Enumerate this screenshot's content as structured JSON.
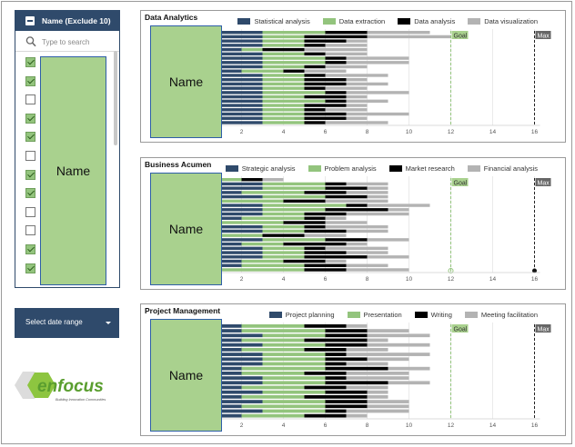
{
  "filter": {
    "title": "Name (Exclude 10)",
    "search_placeholder": "Type to search",
    "checkboxes": [
      true,
      true,
      false,
      true,
      true,
      false,
      true,
      true,
      false,
      false,
      true,
      true
    ],
    "name_label": "Name"
  },
  "date_button": {
    "label": "Select date range"
  },
  "logo": {
    "brand": "enfocus",
    "tagline": "Building Innovation Communities"
  },
  "colors": {
    "navy": "#2f4a6b",
    "green": "#93c47d",
    "black": "#000000",
    "gray": "#b3b3b3",
    "name_fill": "#a9d18e"
  },
  "charts": [
    {
      "title": "Data Analytics",
      "name_label": "Name",
      "legend": [
        "Statistical analysis",
        "Data extraction",
        "Data analysis",
        "Data visualization"
      ],
      "goal_label": "Goal",
      "max_label": "Max",
      "rows": [
        [
          3,
          3,
          2,
          3
        ],
        [
          3,
          2,
          3,
          4
        ],
        [
          3,
          2,
          2,
          1
        ],
        [
          3,
          2,
          1,
          2
        ],
        [
          2,
          1,
          2,
          3
        ],
        [
          3,
          2,
          1,
          2
        ],
        [
          3,
          3,
          1,
          3
        ],
        [
          3,
          3,
          1,
          3
        ],
        [
          3,
          2,
          1,
          2
        ],
        [
          2,
          2,
          1,
          2
        ],
        [
          3,
          2,
          1,
          3
        ],
        [
          3,
          2,
          2,
          1
        ],
        [
          3,
          2,
          2,
          2
        ],
        [
          3,
          2,
          1,
          2
        ],
        [
          3,
          3,
          1,
          3
        ],
        [
          3,
          2,
          2,
          1
        ],
        [
          3,
          3,
          1,
          2
        ],
        [
          3,
          2,
          2,
          1
        ],
        [
          3,
          2,
          1,
          2
        ],
        [
          3,
          2,
          2,
          3
        ],
        [
          3,
          2,
          2,
          1
        ],
        [
          3,
          2,
          1,
          3
        ]
      ]
    },
    {
      "title": "Business Acumen",
      "name_label": "Name",
      "legend": [
        "Strategic analysis",
        "Problem analysis",
        "Market research",
        "Financial analysis"
      ],
      "goal_label": "Goal",
      "max_label": "Max",
      "rows": [
        [
          1,
          1,
          1,
          1
        ],
        [
          3,
          3,
          1,
          2
        ],
        [
          3,
          3,
          2,
          1
        ],
        [
          2,
          3,
          2,
          2
        ],
        [
          3,
          3,
          2,
          1
        ],
        [
          1,
          3,
          2,
          3
        ],
        [
          3,
          4,
          1,
          3
        ],
        [
          3,
          3,
          3,
          1
        ],
        [
          3,
          2,
          2,
          3
        ],
        [
          2,
          3,
          1,
          1
        ],
        [
          1,
          3,
          2,
          2
        ],
        [
          3,
          2,
          1,
          3
        ],
        [
          3,
          2,
          2,
          2
        ],
        [
          1,
          2,
          2,
          2
        ],
        [
          3,
          3,
          2,
          2
        ],
        [
          2,
          2,
          3,
          1
        ],
        [
          3,
          2,
          1,
          3
        ],
        [
          3,
          2,
          2,
          2
        ],
        [
          3,
          2,
          3,
          2
        ],
        [
          2,
          2,
          2,
          1
        ],
        [
          2,
          3,
          2,
          2
        ],
        [
          1,
          4,
          2,
          3
        ]
      ]
    },
    {
      "title": "Project Management",
      "name_label": "Name",
      "legend": [
        "Project planning",
        "Presentation",
        "Writing",
        "Meeting facilitation"
      ],
      "goal_label": "Goal",
      "max_label": "Max",
      "rows": [
        [
          2,
          3,
          2,
          1
        ],
        [
          2,
          4,
          2,
          2
        ],
        [
          3,
          3,
          2,
          3
        ],
        [
          2,
          3,
          3,
          1
        ],
        [
          3,
          3,
          2,
          3
        ],
        [
          2,
          3,
          2,
          2
        ],
        [
          3,
          3,
          1,
          4
        ],
        [
          3,
          3,
          2,
          2
        ],
        [
          3,
          3,
          1,
          2
        ],
        [
          2,
          4,
          3,
          2
        ],
        [
          2,
          3,
          2,
          3
        ],
        [
          3,
          3,
          1,
          3
        ],
        [
          3,
          3,
          3,
          2
        ],
        [
          2,
          3,
          2,
          2
        ],
        [
          3,
          3,
          2,
          1
        ],
        [
          2,
          3,
          3,
          1
        ],
        [
          3,
          3,
          2,
          2
        ],
        [
          2,
          4,
          2,
          2
        ],
        [
          3,
          3,
          1,
          3
        ],
        [
          2,
          3,
          2,
          1
        ]
      ]
    }
  ],
  "axis": {
    "ticks": [
      0,
      2,
      4,
      6,
      8,
      10,
      12,
      14,
      16
    ],
    "goal": 12,
    "max": 16,
    "xlim": [
      0,
      16
    ]
  }
}
